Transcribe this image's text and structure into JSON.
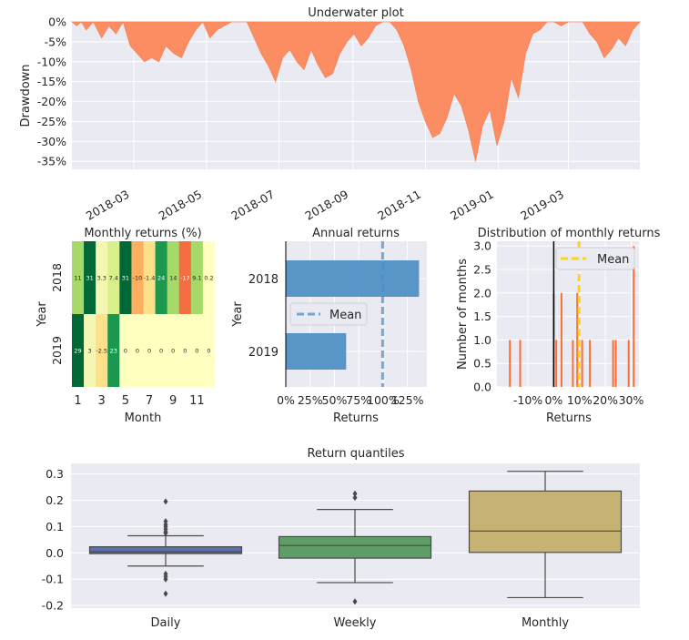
{
  "chart_data": [
    {
      "type": "area",
      "title": "Underwater plot",
      "xlabel": "",
      "ylabel": "Drawdown",
      "colors": {
        "fill": "#fc8d62",
        "line": "#f4845d",
        "background": "#eaeaf2",
        "grid": "#ffffff"
      },
      "ylim": [
        -37,
        0
      ],
      "yticks": [
        0,
        -5,
        -10,
        -15,
        -20,
        -25,
        -30,
        -35
      ],
      "ytick_labels": [
        "0%",
        "-5%",
        "-10%",
        "-15%",
        "-20%",
        "-25%",
        "-30%",
        "-35%"
      ],
      "xtick_labels": [
        "2018-03",
        "2018-05",
        "2018-07",
        "2018-09",
        "2018-11",
        "2019-01",
        "2019-03"
      ],
      "xticks": [
        "2018-03-01",
        "2018-05-01",
        "2018-07-01",
        "2018-09-01",
        "2018-11-01",
        "2019-01-01",
        "2019-03-01"
      ],
      "xlim": [
        "2018-01-08",
        "2019-04-30"
      ],
      "grid": true,
      "x": [
        "2018-01-08",
        "2018-01-12",
        "2018-01-16",
        "2018-01-20",
        "2018-01-26",
        "2018-02-02",
        "2018-02-08",
        "2018-02-14",
        "2018-02-20",
        "2018-02-26",
        "2018-03-04",
        "2018-03-10",
        "2018-03-16",
        "2018-03-22",
        "2018-03-28",
        "2018-04-04",
        "2018-04-10",
        "2018-04-16",
        "2018-04-22",
        "2018-04-28",
        "2018-05-04",
        "2018-05-10",
        "2018-05-16",
        "2018-05-22",
        "2018-05-28",
        "2018-06-04",
        "2018-06-10",
        "2018-06-16",
        "2018-06-22",
        "2018-06-28",
        "2018-07-04",
        "2018-07-10",
        "2018-07-16",
        "2018-07-22",
        "2018-07-28",
        "2018-08-03",
        "2018-08-09",
        "2018-08-15",
        "2018-08-21",
        "2018-08-27",
        "2018-09-02",
        "2018-09-08",
        "2018-09-14",
        "2018-09-20",
        "2018-09-26",
        "2018-10-02",
        "2018-10-08",
        "2018-10-14",
        "2018-10-20",
        "2018-10-26",
        "2018-11-01",
        "2018-11-07",
        "2018-11-13",
        "2018-11-19",
        "2018-11-25",
        "2018-12-01",
        "2018-12-07",
        "2018-12-13",
        "2018-12-19",
        "2018-12-25",
        "2018-12-31",
        "2019-01-06",
        "2019-01-12",
        "2019-01-18",
        "2019-01-24",
        "2019-01-30",
        "2019-02-05",
        "2019-02-11",
        "2019-02-17",
        "2019-02-23",
        "2019-03-01",
        "2019-03-07",
        "2019-03-13",
        "2019-03-19",
        "2019-03-25",
        "2019-03-31",
        "2019-04-06",
        "2019-04-12",
        "2019-04-18",
        "2019-04-24",
        "2019-04-30"
      ],
      "values": [
        0,
        -1,
        0,
        -2,
        0,
        -4,
        -1,
        -3,
        0,
        -6,
        -8,
        -10,
        -9,
        -10,
        -6,
        -8,
        -9,
        -5,
        -2,
        0,
        -4,
        -2,
        -1,
        0,
        0,
        0,
        -4,
        -8,
        -11,
        -15,
        -9,
        -7,
        -10,
        -12,
        -7,
        -11,
        -14,
        -13,
        -8,
        -5,
        -3,
        -6,
        -4,
        -1,
        0,
        0,
        -2,
        -6,
        -12,
        -20,
        -25,
        -29,
        -28,
        -24,
        -18,
        -21,
        -27,
        -35,
        -26,
        -22,
        -31,
        -25,
        -14,
        -19,
        -8,
        -3,
        -2,
        0,
        0,
        -1,
        0,
        0,
        0,
        -3,
        -5,
        -9,
        -7,
        -4,
        -6,
        -2,
        0
      ]
    },
    {
      "type": "heatmap",
      "title": "Monthly returns (%)",
      "xlabel": "Month",
      "ylabel": "Year",
      "xtick_labels": [
        "1",
        "3",
        "5",
        "7",
        "9",
        "11"
      ],
      "years": [
        "2018",
        "2019"
      ],
      "months": [
        1,
        2,
        3,
        4,
        5,
        6,
        7,
        8,
        9,
        10,
        11,
        12
      ],
      "values": [
        [
          11,
          31,
          3.3,
          7.4,
          31,
          -10,
          -1.4,
          24,
          14,
          -17,
          9.1,
          0.2
        ],
        [
          29,
          3,
          -2.5,
          23,
          0,
          0,
          0,
          0,
          0,
          0,
          0,
          0
        ]
      ],
      "labels": [
        [
          "11",
          "31",
          "3.3",
          "7.4",
          "31",
          "-10",
          "-1.4",
          "24",
          "14",
          "-17",
          "9.1",
          "0.2"
        ],
        [
          "29",
          "3",
          "-2.5",
          "23",
          "0",
          "0",
          "0",
          "0",
          "0",
          "0",
          "0",
          "0"
        ]
      ]
    },
    {
      "type": "bar",
      "orientation": "horizontal",
      "title": "Annual returns",
      "xlabel": "Returns",
      "ylabel": "Year",
      "categories": [
        "2018",
        "2019"
      ],
      "values": [
        137,
        62
      ],
      "mean": 99.5,
      "mean_label": "Mean",
      "xlim": [
        0,
        145
      ],
      "xtick_labels": [
        "0%",
        "25%",
        "50%",
        "75%",
        "100%",
        "125%"
      ],
      "bar_color": "#4c8ec4",
      "mean_color": "#4c8ec4"
    },
    {
      "type": "bar",
      "title": "Distribution of monthly returns",
      "xlabel": "Returns",
      "ylabel": "Number of months",
      "bins": [
        -17,
        -13,
        0,
        1,
        3,
        7.4,
        9.1,
        11,
        14,
        23,
        24,
        29,
        31
      ],
      "counts": [
        1,
        1,
        2,
        1,
        2,
        1,
        2,
        1,
        1,
        1,
        1,
        1,
        3
      ],
      "mean": 9.8,
      "mean_label": "Mean",
      "zero_line": 0,
      "xlim": [
        -22,
        33
      ],
      "ylim": [
        0,
        3.1
      ],
      "xtick_labels": [
        "-10%",
        "0%",
        "10%",
        "20%",
        "30%"
      ],
      "ytick_labels": [
        "0.0",
        "0.5",
        "1.0",
        "1.5",
        "2.0",
        "2.5",
        "3.0"
      ],
      "bar_color": "#fb6320",
      "mean_color": "#ffd319"
    },
    {
      "type": "box",
      "title": "Return quantiles",
      "xlabel": "",
      "ylabel": "",
      "categories": [
        "Daily",
        "Weekly",
        "Monthly"
      ],
      "ylim": [
        -0.21,
        0.34
      ],
      "ytick_labels": [
        "0.3",
        "0.2",
        "0.1",
        "0.0",
        "-0.1",
        "-0.2"
      ],
      "boxes": [
        {
          "name": "Daily",
          "q1": -0.003,
          "median": 0.004,
          "q3": 0.023,
          "whisker_low": -0.05,
          "whisker_high": 0.065,
          "outliers": [
            0.195,
            0.12,
            0.108,
            0.1,
            0.09,
            0.08,
            0.075,
            -0.08,
            -0.09,
            -0.1,
            -0.155
          ],
          "color": "#5a6fa8"
        },
        {
          "name": "Weekly",
          "q1": -0.02,
          "median": 0.028,
          "q3": 0.062,
          "whisker_low": -0.113,
          "whisker_high": 0.165,
          "outliers": [
            0.225,
            0.21,
            -0.185
          ],
          "color": "#5e9e66"
        },
        {
          "name": "Monthly",
          "q1": 0.002,
          "median": 0.083,
          "q3": 0.235,
          "whisker_low": -0.17,
          "whisker_high": 0.31,
          "outliers": [],
          "color": "#c6b272"
        }
      ]
    }
  ]
}
